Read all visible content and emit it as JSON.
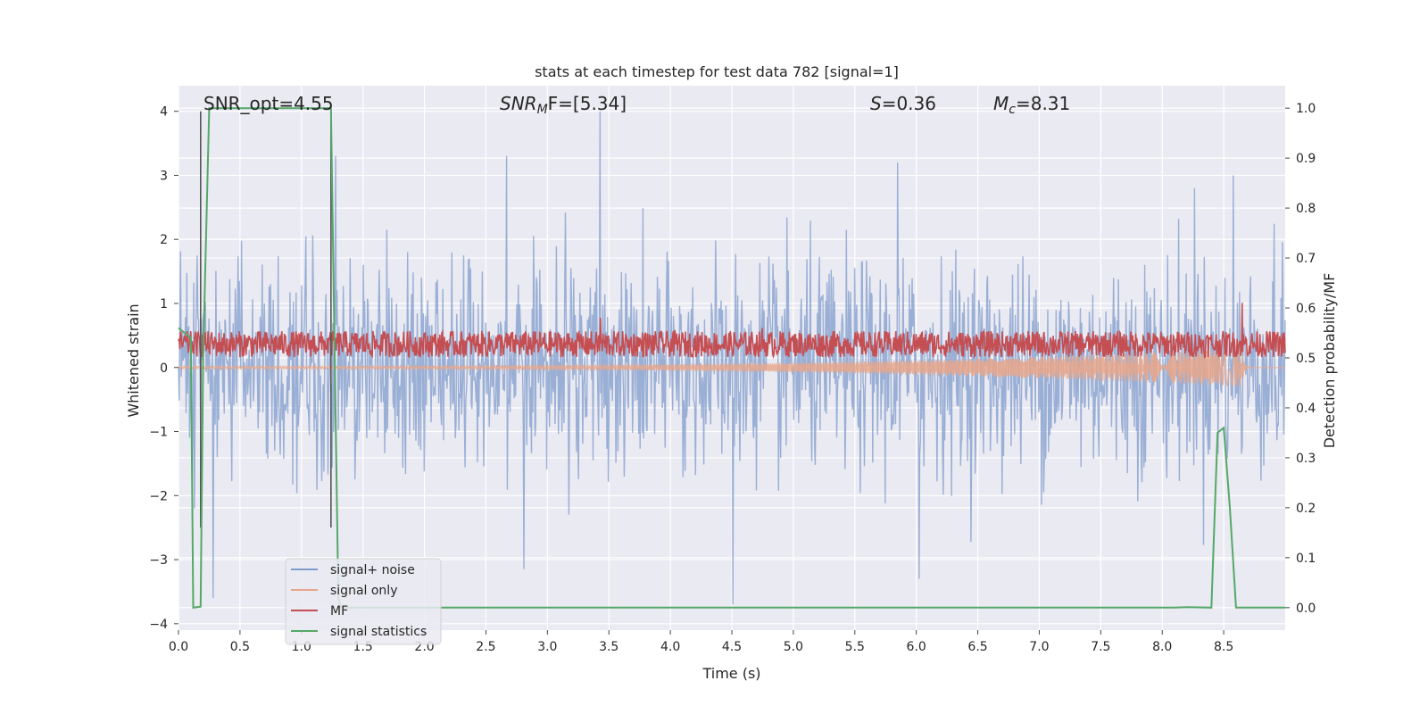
{
  "chart_data": {
    "type": "line",
    "title": "stats at each timestep for test data 782 [signal=1]",
    "xlabel": "Time (s)",
    "ylabel_left": "Whitened strain",
    "ylabel_right": "Detection probability/MF",
    "xlim": [
      0,
      9
    ],
    "ylim_left": [
      -4.1,
      4.4
    ],
    "ylim_right": [
      -0.045,
      1.045
    ],
    "x_ticks": [
      0.0,
      0.5,
      1.0,
      1.5,
      2.0,
      2.5,
      3.0,
      3.5,
      4.0,
      4.5,
      5.0,
      5.5,
      6.0,
      6.5,
      7.0,
      7.5,
      8.0,
      8.5
    ],
    "x_tick_labels": [
      "0.0",
      "0.5",
      "1.0",
      "1.5",
      "2.0",
      "2.5",
      "3.0",
      "3.5",
      "4.0",
      "4.5",
      "5.0",
      "5.5",
      "6.0",
      "6.5",
      "7.0",
      "7.5",
      "8.0",
      "8.5"
    ],
    "y_left_ticks": [
      -4,
      -3,
      -2,
      -1,
      0,
      1,
      2,
      3,
      4
    ],
    "y_left_tick_labels": [
      "−4",
      "−3",
      "−2",
      "−1",
      "0",
      "1",
      "2",
      "3",
      "4"
    ],
    "y_right_ticks": [
      0.0,
      0.1,
      0.2,
      0.3,
      0.4,
      0.5,
      0.6,
      0.7,
      0.8,
      0.9,
      1.0
    ],
    "y_right_tick_labels": [
      "0.0",
      "0.1",
      "0.2",
      "0.3",
      "0.4",
      "0.5",
      "0.6",
      "0.7",
      "0.8",
      "0.9",
      "1.0"
    ],
    "grid": true,
    "legend_placement": "lower-left",
    "annotations": {
      "snr_opt": "SNR_opt=4.55",
      "snr_mf_base": "SNR",
      "snr_mf_sub": "M",
      "snr_mf_rest": "F=[5.34]",
      "s_sym": "S",
      "s_val": "=0.36",
      "mc_base": "M",
      "mc_sub": "c",
      "mc_val": "=8.31"
    },
    "markers": {
      "vline_times": [
        0.18,
        1.24
      ],
      "vline_color": "#555555"
    },
    "series": [
      {
        "name": "signal+ noise",
        "axis": "left",
        "color": "#7f9bcb",
        "kind": "noise",
        "envelope_std": 0.82,
        "peak_values": [
          {
            "x": 3.43,
            "y": 4.0
          },
          {
            "x": 2.67,
            "y": 3.3
          },
          {
            "x": 5.85,
            "y": 3.2
          },
          {
            "x": 1.28,
            "y": 3.3
          },
          {
            "x": 0.28,
            "y": -3.6
          },
          {
            "x": 4.51,
            "y": -3.7
          },
          {
            "x": 2.81,
            "y": -3.15
          },
          {
            "x": 6.02,
            "y": -3.3
          },
          {
            "x": 8.58,
            "y": 3.0
          },
          {
            "x": 8.26,
            "y": 2.8
          },
          {
            "x": 0.13,
            "y": -2.2
          }
        ]
      },
      {
        "name": "signal only",
        "axis": "left",
        "color": "#e8a68a",
        "kind": "chirp",
        "amplitude_start": 0.02,
        "amplitude_end": 0.3,
        "merger_time": 8.65
      },
      {
        "name": "MF",
        "axis": "right",
        "color": "#c44e52",
        "kind": "mf",
        "base_level": 0.525,
        "noise_span": 0.035,
        "spikes": [
          {
            "x": 3.43,
            "y": 0.58
          },
          {
            "x": 4.75,
            "y": 0.56
          },
          {
            "x": 8.65,
            "y": 0.61
          }
        ]
      },
      {
        "name": "signal statistics",
        "axis": "right",
        "color": "#55a868",
        "kind": "stats",
        "x": [
          0.0,
          0.05,
          0.1,
          0.12,
          0.18,
          0.2,
          0.25,
          1.15,
          1.24,
          1.3,
          1.32,
          1.5,
          8.1,
          8.2,
          8.4,
          8.45,
          8.5,
          8.55,
          8.6,
          8.7,
          9.0
        ],
        "y": [
          0.56,
          0.55,
          0.54,
          0.0,
          0.002,
          0.5,
          1.0,
          1.0,
          1.0,
          0.02,
          0.0,
          0.0,
          0.0,
          0.001,
          0.0,
          0.35,
          0.36,
          0.2,
          0.0,
          0.0,
          0.0
        ]
      }
    ]
  }
}
